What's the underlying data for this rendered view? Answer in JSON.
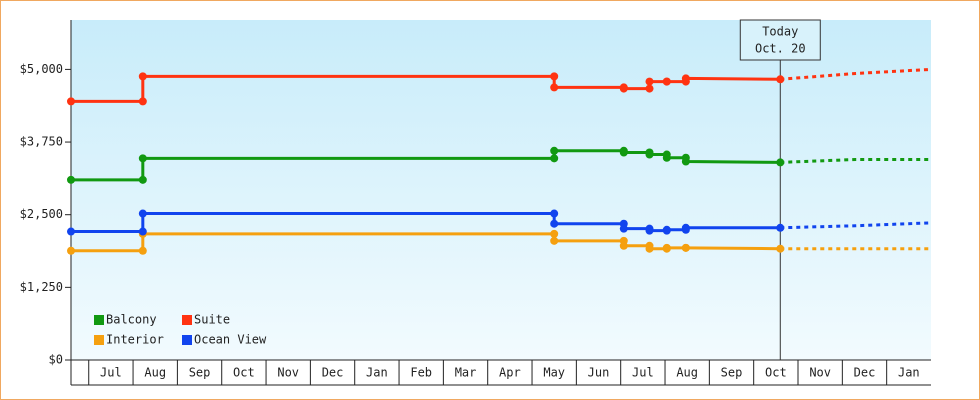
{
  "chart_data": {
    "type": "line",
    "xlim": [
      -0.4,
      19
    ],
    "xticks": [
      {
        "value": 0,
        "label": "Jul"
      },
      {
        "value": 1,
        "label": "Aug"
      },
      {
        "value": 2,
        "label": "Sep"
      },
      {
        "value": 3,
        "label": "Oct"
      },
      {
        "value": 4,
        "label": "Nov"
      },
      {
        "value": 5,
        "label": "Dec"
      },
      {
        "value": 6,
        "label": "Jan"
      },
      {
        "value": 7,
        "label": "Feb"
      },
      {
        "value": 8,
        "label": "Mar"
      },
      {
        "value": 9,
        "label": "Apr"
      },
      {
        "value": 10,
        "label": "May"
      },
      {
        "value": 11,
        "label": "Jun"
      },
      {
        "value": 12,
        "label": "Jul"
      },
      {
        "value": 13,
        "label": "Aug"
      },
      {
        "value": 14,
        "label": "Sep"
      },
      {
        "value": 15,
        "label": "Oct"
      },
      {
        "value": 16,
        "label": "Nov"
      },
      {
        "value": 17,
        "label": "Dec"
      },
      {
        "value": 18,
        "label": "Jan"
      }
    ],
    "ylim": [
      0,
      5850
    ],
    "yticks": [
      {
        "value": 0,
        "label": "$0"
      },
      {
        "value": 1250,
        "label": "$1,250"
      },
      {
        "value": 2500,
        "label": "$2,500"
      },
      {
        "value": 3750,
        "label": "$3,750"
      },
      {
        "value": 5000,
        "label": "$5,000"
      }
    ],
    "x": [
      -0.4,
      1.22,
      1.22,
      10.5,
      10.5,
      12.07,
      12.07,
      12.65,
      12.65,
      13.04,
      13.04,
      13.47,
      13.47,
      15.6
    ],
    "forecast_x": [
      15.6,
      17.3,
      19
    ],
    "series": [
      {
        "name": "Balcony",
        "color": "#119911",
        "values": [
          3100,
          3100,
          3470,
          3470,
          3600,
          3600,
          3570,
          3570,
          3535,
          3535,
          3480,
          3480,
          3415,
          3400
        ],
        "forecast_values": [
          3400,
          3450,
          3450
        ]
      },
      {
        "name": "Suite",
        "color": "#ff3311",
        "values": [
          4450,
          4450,
          4880,
          4880,
          4690,
          4690,
          4670,
          4670,
          4790,
          4790,
          4790,
          4790,
          4845,
          4830
        ],
        "forecast_values": [
          4830,
          4930,
          5000
        ]
      },
      {
        "name": "Interior",
        "color": "#f5a00f",
        "values": [
          1880,
          1880,
          2170,
          2170,
          2050,
          2050,
          1965,
          1965,
          1915,
          1915,
          1930,
          1930,
          1930,
          1915
        ],
        "forecast_values": [
          1915,
          1915,
          1915
        ]
      },
      {
        "name": "Ocean View",
        "color": "#1144ee",
        "values": [
          2210,
          2210,
          2520,
          2520,
          2345,
          2345,
          2260,
          2260,
          2225,
          2225,
          2240,
          2240,
          2275,
          2275
        ],
        "forecast_values": [
          2275,
          2310,
          2360
        ]
      }
    ],
    "today_marker": {
      "x": 15.6,
      "label": [
        "Today",
        "Oct. 20"
      ]
    },
    "legend": "lower-left"
  }
}
